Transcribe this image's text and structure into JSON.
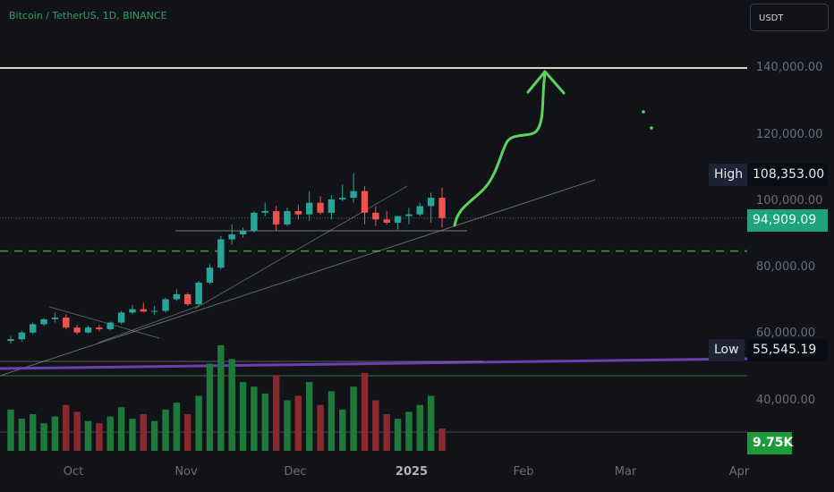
{
  "header": {
    "symbol_title": "Bitcoin / TetherUS, 1D, BINANCE",
    "currency": "USDT"
  },
  "axes": {
    "y_ticks": [
      "140,000.00",
      "120,000.00",
      "100,000.00",
      "80,000.00",
      "60,000.00",
      "40,000.00"
    ],
    "x_ticks": [
      "Oct",
      "Nov",
      "Dec",
      "2025",
      "Feb",
      "Mar",
      "Apr"
    ]
  },
  "badges": {
    "high_label": "High",
    "high_value": "108,353.00",
    "low_label": "Low",
    "low_value": "55,545.19",
    "last_price": "94,909.09",
    "volume": "9.75K"
  },
  "colors": {
    "up": "#26a69a",
    "down": "#ef5350",
    "volume_up": "#1e7a3a",
    "volume_down": "#8a2a2f",
    "background": "#121318",
    "arrow": "#5bd35a",
    "purple_trend": "#6b3fb0"
  },
  "chart_data": {
    "type": "candlestick",
    "title": "Bitcoin / TetherUS, 1D, BINANCE",
    "ylim": [
      30000,
      150000
    ],
    "x": [
      "2024-09-15",
      "2024-09-18",
      "2024-09-21",
      "2024-09-24",
      "2024-09-27",
      "2024-09-30",
      "2024-10-03",
      "2024-10-06",
      "2024-10-09",
      "2024-10-12",
      "2024-10-15",
      "2024-10-18",
      "2024-10-21",
      "2024-10-24",
      "2024-10-27",
      "2024-10-30",
      "2024-11-02",
      "2024-11-05",
      "2024-11-08",
      "2024-11-11",
      "2024-11-14",
      "2024-11-17",
      "2024-11-20",
      "2024-11-23",
      "2024-11-26",
      "2024-11-29",
      "2024-12-02",
      "2024-12-05",
      "2024-12-08",
      "2024-12-11",
      "2024-12-14",
      "2024-12-17",
      "2024-12-20",
      "2024-12-23",
      "2024-12-26",
      "2024-12-29",
      "2025-01-01",
      "2025-01-04",
      "2025-01-07",
      "2025-01-10"
    ],
    "series": [
      {
        "name": "Open",
        "values": [
          58000,
          58500,
          60500,
          63000,
          64500,
          65000,
          62000,
          60500,
          62000,
          61500,
          63500,
          66500,
          67500,
          66800,
          67000,
          70500,
          72000,
          69000,
          75500,
          80000,
          88500,
          90000,
          91000,
          96500,
          97000,
          93000,
          97000,
          96000,
          99500,
          96500,
          100500,
          101000,
          103000,
          96500,
          94500,
          93500,
          95500,
          96000,
          98500,
          101000
        ]
      },
      {
        "name": "High",
        "values": [
          59500,
          61000,
          63500,
          64800,
          66500,
          66000,
          62800,
          62500,
          62800,
          63800,
          67000,
          68800,
          69500,
          68500,
          71000,
          73500,
          72500,
          76000,
          81000,
          89500,
          93000,
          92000,
          97000,
          99500,
          98500,
          98000,
          99000,
          103000,
          101500,
          101800,
          105000,
          108353,
          104500,
          98500,
          97000,
          95500,
          98000,
          99500,
          102500,
          104000
        ]
      },
      {
        "name": "Low",
        "values": [
          57200,
          57800,
          60000,
          62500,
          63500,
          61500,
          60000,
          60200,
          60800,
          61200,
          63000,
          66000,
          66500,
          65800,
          66500,
          70000,
          68500,
          68500,
          75000,
          79500,
          87000,
          89000,
          90500,
          95500,
          91000,
          92500,
          94500,
          94000,
          96000,
          94500,
          100000,
          99500,
          93000,
          92500,
          93000,
          91500,
          93000,
          95500,
          93500,
          92000
        ]
      },
      {
        "name": "Close",
        "values": [
          58500,
          60500,
          63000,
          64500,
          65000,
          62000,
          60500,
          62000,
          61500,
          63500,
          66500,
          67500,
          66800,
          67000,
          70500,
          72000,
          69000,
          75500,
          80000,
          88500,
          90000,
          91000,
          96500,
          97000,
          93000,
          97000,
          96000,
          99500,
          96500,
          100500,
          101000,
          103000,
          96500,
          94500,
          93500,
          95500,
          96000,
          98500,
          101000,
          94909.09
        ]
      },
      {
        "name": "Volume",
        "values": [
          18,
          14,
          16,
          12,
          15,
          20,
          17,
          13,
          12,
          15,
          19,
          14,
          16,
          13,
          18,
          21,
          16,
          24,
          38,
          46,
          40,
          30,
          28,
          25,
          33,
          22,
          24,
          30,
          20,
          26,
          18,
          28,
          34,
          22,
          16,
          14,
          17,
          20,
          24,
          9.75
        ]
      }
    ],
    "y_ticks": [
      140000,
      120000,
      100000,
      80000,
      60000,
      40000
    ],
    "x_tick_labels": [
      "Oct",
      "Nov",
      "Dec",
      "2025",
      "Feb",
      "Mar",
      "Apr"
    ],
    "last_price": 94909.09,
    "high": 108353,
    "low": 55545.19,
    "horizontal_levels": [
      140000,
      85000
    ],
    "grid": false
  }
}
